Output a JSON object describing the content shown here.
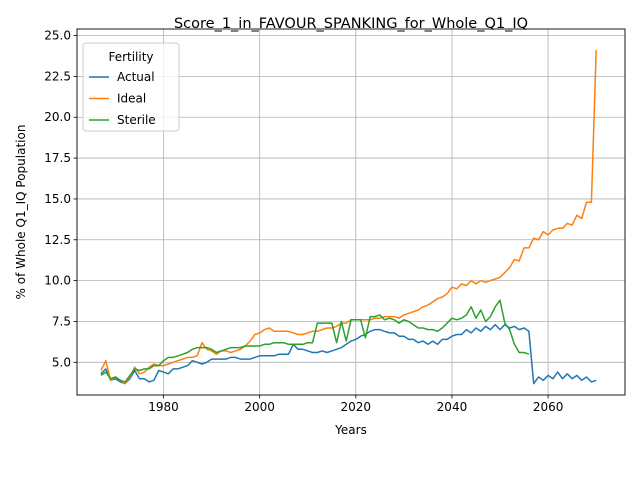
{
  "chart_data": {
    "type": "line",
    "title": "Score_1_in_FAVOUR_SPANKING_for_Whole_Q1_IQ",
    "xlabel": "Years",
    "ylabel": "% of Whole Q1_IQ Population",
    "xlim": [
      1962,
      2076
    ],
    "ylim": [
      3.0,
      25.4
    ],
    "xticks": [
      1980,
      2000,
      2020,
      2040,
      2060
    ],
    "yticks": [
      5.0,
      7.5,
      10.0,
      12.5,
      15.0,
      17.5,
      20.0,
      22.5,
      25.0
    ],
    "xtick_labels": [
      "1980",
      "2000",
      "2020",
      "2040",
      "2060"
    ],
    "ytick_labels": [
      "5.0",
      "7.5",
      "10.0",
      "12.5",
      "15.0",
      "17.5",
      "20.0",
      "22.5",
      "25.0"
    ],
    "grid": true,
    "legend": {
      "title": "Fertility",
      "placement": "upper left"
    },
    "series": [
      {
        "name": "Actual",
        "color": "#1f77b4",
        "x": [
          1967,
          1968,
          1969,
          1970,
          1971,
          1972,
          1973,
          1974,
          1975,
          1976,
          1977,
          1978,
          1979,
          1980,
          1981,
          1982,
          1983,
          1984,
          1985,
          1986,
          1987,
          1988,
          1989,
          1990,
          1991,
          1992,
          1993,
          1994,
          1995,
          1996,
          1997,
          1998,
          1999,
          2000,
          2001,
          2002,
          2003,
          2004,
          2005,
          2006,
          2007,
          2008,
          2009,
          2010,
          2011,
          2012,
          2013,
          2014,
          2015,
          2016,
          2017,
          2018,
          2019,
          2020,
          2021,
          2022,
          2023,
          2024,
          2025,
          2026,
          2027,
          2028,
          2029,
          2030,
          2031,
          2032,
          2033,
          2034,
          2035,
          2036,
          2037,
          2038,
          2039,
          2040,
          2041,
          2042,
          2043,
          2044,
          2045,
          2046,
          2047,
          2048,
          2049,
          2050,
          2051,
          2052,
          2053,
          2054,
          2055,
          2056,
          2057,
          2058,
          2059,
          2060,
          2061,
          2062,
          2063,
          2064,
          2065,
          2066,
          2067,
          2068,
          2069,
          2070
        ],
        "y": [
          4.3,
          4.6,
          3.9,
          4.0,
          3.8,
          3.7,
          4.0,
          4.5,
          4.0,
          4.0,
          3.8,
          3.9,
          4.5,
          4.4,
          4.3,
          4.6,
          4.6,
          4.7,
          4.8,
          5.1,
          5.0,
          4.9,
          5.0,
          5.2,
          5.2,
          5.2,
          5.2,
          5.3,
          5.3,
          5.2,
          5.2,
          5.2,
          5.3,
          5.4,
          5.4,
          5.4,
          5.4,
          5.5,
          5.5,
          5.5,
          6.1,
          5.8,
          5.8,
          5.7,
          5.6,
          5.6,
          5.7,
          5.6,
          5.7,
          5.8,
          5.9,
          6.1,
          6.3,
          6.4,
          6.6,
          6.7,
          6.9,
          7.0,
          7.0,
          6.9,
          6.8,
          6.8,
          6.6,
          6.6,
          6.4,
          6.4,
          6.2,
          6.3,
          6.1,
          6.3,
          6.1,
          6.4,
          6.4,
          6.6,
          6.7,
          6.7,
          7.0,
          6.8,
          7.1,
          6.9,
          7.2,
          7.0,
          7.3,
          7.0,
          7.3,
          7.1,
          7.2,
          7.0,
          7.1,
          6.9,
          3.7,
          4.1,
          3.9,
          4.2,
          4.0,
          4.4,
          4.0,
          4.3,
          4.0,
          4.2,
          3.9,
          4.1,
          3.8,
          3.9
        ]
      },
      {
        "name": "Ideal",
        "color": "#ff7f0e",
        "x": [
          1967,
          1968,
          1969,
          1970,
          1971,
          1972,
          1973,
          1974,
          1975,
          1976,
          1977,
          1978,
          1979,
          1980,
          1981,
          1982,
          1983,
          1984,
          1985,
          1986,
          1987,
          1988,
          1989,
          1990,
          1991,
          1992,
          1993,
          1994,
          1995,
          1996,
          1997,
          1998,
          1999,
          2000,
          2001,
          2002,
          2003,
          2004,
          2005,
          2006,
          2007,
          2008,
          2009,
          2010,
          2011,
          2012,
          2013,
          2014,
          2015,
          2016,
          2017,
          2018,
          2019,
          2020,
          2021,
          2022,
          2023,
          2024,
          2025,
          2026,
          2027,
          2028,
          2029,
          2030,
          2031,
          2032,
          2033,
          2034,
          2035,
          2036,
          2037,
          2038,
          2039,
          2040,
          2041,
          2042,
          2043,
          2044,
          2045,
          2046,
          2047,
          2048,
          2049,
          2050,
          2051,
          2052,
          2053,
          2054,
          2055,
          2056,
          2057,
          2058,
          2059,
          2060,
          2061,
          2062,
          2063,
          2064,
          2065,
          2066,
          2067,
          2068,
          2069,
          2070
        ],
        "y": [
          4.5,
          5.1,
          3.9,
          4.1,
          3.9,
          3.7,
          4.1,
          4.7,
          4.3,
          4.4,
          4.7,
          4.9,
          4.8,
          4.8,
          4.9,
          5.0,
          5.1,
          5.2,
          5.3,
          5.3,
          5.4,
          6.2,
          5.8,
          5.7,
          5.5,
          5.7,
          5.7,
          5.6,
          5.7,
          5.8,
          6.0,
          6.3,
          6.7,
          6.8,
          7.0,
          7.1,
          6.9,
          6.9,
          6.9,
          6.9,
          6.8,
          6.7,
          6.7,
          6.8,
          6.9,
          6.9,
          7.0,
          7.1,
          7.1,
          7.2,
          7.4,
          7.4,
          7.6,
          7.6,
          7.6,
          7.6,
          7.6,
          7.7,
          7.7,
          7.8,
          7.8,
          7.8,
          7.7,
          7.9,
          8.0,
          8.1,
          8.2,
          8.4,
          8.5,
          8.7,
          8.9,
          9.0,
          9.2,
          9.6,
          9.5,
          9.8,
          9.7,
          10.0,
          9.8,
          10.0,
          9.9,
          10.0,
          10.1,
          10.2,
          10.5,
          10.8,
          11.3,
          11.2,
          12.0,
          12.0,
          12.6,
          12.5,
          13.0,
          12.8,
          13.1,
          13.2,
          13.2,
          13.5,
          13.4,
          14.0,
          13.8,
          14.8,
          14.8,
          24.1
        ]
      },
      {
        "name": "Sterile",
        "color": "#2ca02c",
        "x": [
          1967,
          1968,
          1969,
          1970,
          1971,
          1972,
          1973,
          1974,
          1975,
          1976,
          1977,
          1978,
          1979,
          1980,
          1981,
          1982,
          1983,
          1984,
          1985,
          1986,
          1987,
          1988,
          1989,
          1990,
          1991,
          1992,
          1993,
          1994,
          1995,
          1996,
          1997,
          1998,
          1999,
          2000,
          2001,
          2002,
          2003,
          2004,
          2005,
          2006,
          2007,
          2008,
          2009,
          2010,
          2011,
          2012,
          2013,
          2014,
          2015,
          2016,
          2017,
          2018,
          2019,
          2020,
          2021,
          2022,
          2023,
          2024,
          2025,
          2026,
          2027,
          2028,
          2029,
          2030,
          2031,
          2032,
          2033,
          2034,
          2035,
          2036,
          2037,
          2038,
          2039,
          2040,
          2041,
          2042,
          2043,
          2044,
          2045,
          2046,
          2047,
          2048,
          2049,
          2050,
          2051,
          2052,
          2053,
          2054,
          2055,
          2056
        ],
        "y": [
          4.2,
          4.4,
          4.0,
          4.1,
          3.9,
          3.8,
          4.2,
          4.6,
          4.5,
          4.6,
          4.6,
          4.8,
          4.8,
          5.1,
          5.3,
          5.3,
          5.4,
          5.5,
          5.6,
          5.8,
          5.9,
          5.9,
          5.9,
          5.8,
          5.6,
          5.7,
          5.8,
          5.9,
          5.9,
          5.9,
          6.0,
          6.0,
          6.0,
          6.0,
          6.1,
          6.1,
          6.2,
          6.2,
          6.2,
          6.1,
          6.1,
          6.1,
          6.1,
          6.2,
          6.2,
          7.4,
          7.4,
          7.4,
          7.4,
          6.2,
          7.5,
          6.3,
          7.6,
          7.6,
          7.6,
          6.5,
          7.8,
          7.8,
          7.9,
          7.6,
          7.7,
          7.6,
          7.4,
          7.6,
          7.5,
          7.3,
          7.1,
          7.1,
          7.0,
          7.0,
          6.9,
          7.1,
          7.4,
          7.7,
          7.6,
          7.7,
          7.9,
          8.4,
          7.7,
          8.2,
          7.5,
          7.8,
          8.4,
          8.8,
          7.4,
          7.0,
          6.1,
          5.6,
          5.6,
          5.5
        ]
      }
    ]
  }
}
